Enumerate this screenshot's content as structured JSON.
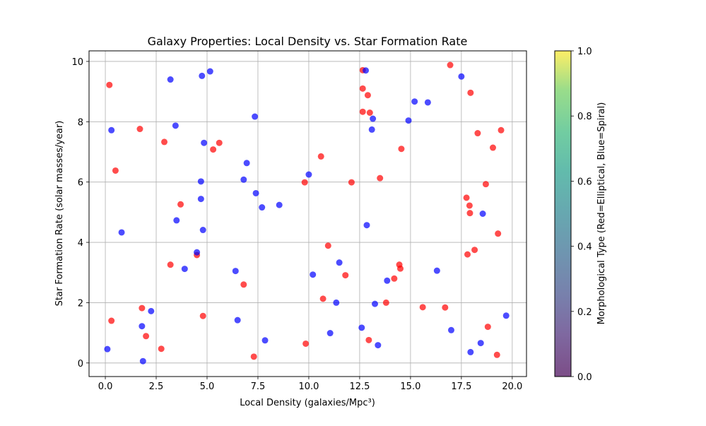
{
  "chart_data": {
    "type": "scatter",
    "title": "Galaxy Properties: Local Density vs. Star Formation Rate",
    "xlabel": "Local Density (galaxies/Mpc³)",
    "ylabel": "Star Formation Rate (solar masses/year)",
    "xlim": [
      -0.8,
      20.7
    ],
    "ylim": [
      -0.45,
      10.35
    ],
    "xticks": [
      0.0,
      2.5,
      5.0,
      7.5,
      10.0,
      12.5,
      15.0,
      17.5,
      20.0
    ],
    "xtick_labels": [
      "0.0",
      "2.5",
      "5.0",
      "7.5",
      "10.0",
      "12.5",
      "15.0",
      "17.5",
      "20.0"
    ],
    "yticks": [
      0,
      2,
      4,
      6,
      8,
      10
    ],
    "ytick_labels": [
      "0",
      "2",
      "4",
      "6",
      "8",
      "10"
    ],
    "grid": true,
    "colorbar": {
      "label": "Morphological Type (Red=Elliptical, Blue=Spiral)",
      "ticks": [
        0.0,
        0.2,
        0.4,
        0.6,
        0.8,
        1.0
      ],
      "tick_labels": [
        "0.0",
        "0.2",
        "0.4",
        "0.6",
        "0.8",
        "1.0"
      ],
      "range": [
        0,
        1
      ]
    },
    "series": [
      {
        "name": "Elliptical",
        "color": "#ff0000",
        "points": [
          [
            0.2,
            9.22
          ],
          [
            0.3,
            1.4
          ],
          [
            0.5,
            6.38
          ],
          [
            1.7,
            7.76
          ],
          [
            1.8,
            1.82
          ],
          [
            2.0,
            0.89
          ],
          [
            2.75,
            0.47
          ],
          [
            2.9,
            7.33
          ],
          [
            3.2,
            3.26
          ],
          [
            3.7,
            5.26
          ],
          [
            4.5,
            3.58
          ],
          [
            4.8,
            1.56
          ],
          [
            5.3,
            7.08
          ],
          [
            5.6,
            7.3
          ],
          [
            6.8,
            2.6
          ],
          [
            7.3,
            0.21
          ],
          [
            9.8,
            5.99
          ],
          [
            9.85,
            0.64
          ],
          [
            10.6,
            6.85
          ],
          [
            10.7,
            2.13
          ],
          [
            10.95,
            3.89
          ],
          [
            11.8,
            2.91
          ],
          [
            12.1,
            5.99
          ],
          [
            12.65,
            9.71
          ],
          [
            12.65,
            9.1
          ],
          [
            12.65,
            8.33
          ],
          [
            12.9,
            8.88
          ],
          [
            13.0,
            8.3
          ],
          [
            12.95,
            0.76
          ],
          [
            13.5,
            6.13
          ],
          [
            13.8,
            2.0
          ],
          [
            14.2,
            2.8
          ],
          [
            14.45,
            3.26
          ],
          [
            14.5,
            3.13
          ],
          [
            14.55,
            7.1
          ],
          [
            15.6,
            1.85
          ],
          [
            16.7,
            1.84
          ],
          [
            16.95,
            9.88
          ],
          [
            17.75,
            5.48
          ],
          [
            17.8,
            3.6
          ],
          [
            17.9,
            5.22
          ],
          [
            17.92,
            4.97
          ],
          [
            17.95,
            8.96
          ],
          [
            18.15,
            3.75
          ],
          [
            18.3,
            7.62
          ],
          [
            18.7,
            5.93
          ],
          [
            18.8,
            1.2
          ],
          [
            19.05,
            7.14
          ],
          [
            19.25,
            0.27
          ],
          [
            19.3,
            4.29
          ],
          [
            19.45,
            7.72
          ]
        ]
      },
      {
        "name": "Spiral",
        "color": "#0000ff",
        "points": [
          [
            0.1,
            0.46
          ],
          [
            0.3,
            7.72
          ],
          [
            0.8,
            4.33
          ],
          [
            1.8,
            1.22
          ],
          [
            1.85,
            0.06
          ],
          [
            2.25,
            1.72
          ],
          [
            3.2,
            9.4
          ],
          [
            3.45,
            7.87
          ],
          [
            3.5,
            4.73
          ],
          [
            3.9,
            3.12
          ],
          [
            4.5,
            3.67
          ],
          [
            4.7,
            6.02
          ],
          [
            4.7,
            5.44
          ],
          [
            4.75,
            9.52
          ],
          [
            4.8,
            4.41
          ],
          [
            4.85,
            7.3
          ],
          [
            5.15,
            9.67
          ],
          [
            6.4,
            3.05
          ],
          [
            6.5,
            1.42
          ],
          [
            6.8,
            6.08
          ],
          [
            6.95,
            6.63
          ],
          [
            7.35,
            8.17
          ],
          [
            7.4,
            5.63
          ],
          [
            7.7,
            5.16
          ],
          [
            7.85,
            0.75
          ],
          [
            8.55,
            5.24
          ],
          [
            10.0,
            6.25
          ],
          [
            10.2,
            2.93
          ],
          [
            11.05,
            0.99
          ],
          [
            11.35,
            2.0
          ],
          [
            11.5,
            3.33
          ],
          [
            12.6,
            1.17
          ],
          [
            12.8,
            9.7
          ],
          [
            12.85,
            4.57
          ],
          [
            13.1,
            7.74
          ],
          [
            13.15,
            8.1
          ],
          [
            13.25,
            1.96
          ],
          [
            13.4,
            0.59
          ],
          [
            13.85,
            2.73
          ],
          [
            14.9,
            8.04
          ],
          [
            15.2,
            8.67
          ],
          [
            15.85,
            8.64
          ],
          [
            16.3,
            3.06
          ],
          [
            17.0,
            1.09
          ],
          [
            17.5,
            9.5
          ],
          [
            17.95,
            0.36
          ],
          [
            18.45,
            0.66
          ],
          [
            18.55,
            4.95
          ],
          [
            19.7,
            1.57
          ]
        ]
      }
    ]
  }
}
